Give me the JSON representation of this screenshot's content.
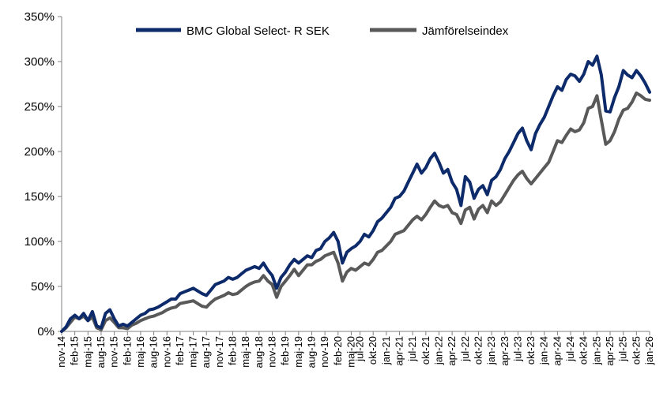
{
  "chart_data": {
    "type": "line",
    "title": "",
    "xlabel": "",
    "ylabel": "",
    "ylim": [
      0,
      350
    ],
    "y_ticks": [
      "0%",
      "50%",
      "100%",
      "150%",
      "200%",
      "250%",
      "300%",
      "350%"
    ],
    "x_ticks": [
      "nov-14",
      "feb-15",
      "maj-15",
      "aug-15",
      "nov-15",
      "feb-16",
      "maj-16",
      "aug-16",
      "nov-16",
      "feb-17",
      "maj-17",
      "aug-17",
      "nov-17",
      "feb-18",
      "maj-18",
      "aug-18",
      "nov-18",
      "feb-19",
      "maj-19",
      "aug-19",
      "nov-19",
      "feb-20",
      "maj-20",
      "jul-20",
      "okt-20",
      "jan-21",
      "apr-21",
      "jul-21",
      "okt-21",
      "jan-22",
      "apr-22",
      "jul-22",
      "okt-22",
      "jan-23",
      "apr-23",
      "jul-23",
      "okt-23",
      "jan-24",
      "apr-24",
      "jul-24",
      "okt-24",
      "jan-25",
      "apr-25",
      "jul-25",
      "okt-25",
      "jan-26"
    ],
    "grid": false,
    "legend_position": "top-center",
    "series": [
      {
        "name": "BMC Global Select- R SEK",
        "color": "#0d2a6b",
        "points": [
          [
            "nov-14",
            0
          ],
          [
            "dec-14",
            5
          ],
          [
            "jan-15",
            14
          ],
          [
            "feb-15",
            18
          ],
          [
            "mar-15",
            14
          ],
          [
            "apr-15",
            20
          ],
          [
            "maj-15",
            12
          ],
          [
            "jun-15",
            22
          ],
          [
            "jul-15",
            6
          ],
          [
            "aug-15",
            4
          ],
          [
            "sep-15",
            20
          ],
          [
            "okt-15",
            24
          ],
          [
            "nov-15",
            14
          ],
          [
            "dec-15",
            6
          ],
          [
            "jan-16",
            8
          ],
          [
            "feb-16",
            6
          ],
          [
            "mar-16",
            10
          ],
          [
            "apr-16",
            14
          ],
          [
            "maj-16",
            18
          ],
          [
            "jun-16",
            20
          ],
          [
            "jul-16",
            24
          ],
          [
            "aug-16",
            25
          ],
          [
            "sep-16",
            27
          ],
          [
            "okt-16",
            30
          ],
          [
            "nov-16",
            33
          ],
          [
            "dec-16",
            36
          ],
          [
            "jan-17",
            36
          ],
          [
            "feb-17",
            42
          ],
          [
            "mar-17",
            44
          ],
          [
            "apr-17",
            46
          ],
          [
            "maj-17",
            48
          ],
          [
            "jun-17",
            45
          ],
          [
            "jul-17",
            42
          ],
          [
            "aug-17",
            40
          ],
          [
            "sep-17",
            46
          ],
          [
            "okt-17",
            52
          ],
          [
            "nov-17",
            54
          ],
          [
            "dec-17",
            56
          ],
          [
            "jan-18",
            60
          ],
          [
            "feb-18",
            58
          ],
          [
            "mar-18",
            60
          ],
          [
            "apr-18",
            64
          ],
          [
            "maj-18",
            68
          ],
          [
            "jun-18",
            70
          ],
          [
            "jul-18",
            72
          ],
          [
            "aug-18",
            70
          ],
          [
            "sep-18",
            76
          ],
          [
            "okt-18",
            68
          ],
          [
            "nov-18",
            62
          ],
          [
            "dec-18",
            48
          ],
          [
            "jan-19",
            60
          ],
          [
            "feb-19",
            66
          ],
          [
            "mar-19",
            74
          ],
          [
            "apr-19",
            80
          ],
          [
            "maj-19",
            76
          ],
          [
            "jun-19",
            80
          ],
          [
            "jul-19",
            84
          ],
          [
            "aug-19",
            82
          ],
          [
            "sep-19",
            90
          ],
          [
            "okt-19",
            92
          ],
          [
            "nov-19",
            100
          ],
          [
            "dec-19",
            104
          ],
          [
            "jan-20",
            110
          ],
          [
            "feb-20",
            100
          ],
          [
            "mar-20",
            76
          ],
          [
            "apr-20",
            88
          ],
          [
            "maj-20",
            92
          ],
          [
            "jun-20",
            95
          ],
          [
            "jul-20",
            100
          ],
          [
            "aug-20",
            108
          ],
          [
            "sep-20",
            105
          ],
          [
            "okt-20",
            112
          ],
          [
            "nov-20",
            122
          ],
          [
            "dec-20",
            126
          ],
          [
            "jan-21",
            132
          ],
          [
            "feb-21",
            138
          ],
          [
            "mar-21",
            148
          ],
          [
            "apr-21",
            150
          ],
          [
            "maj-21",
            156
          ],
          [
            "jun-21",
            166
          ],
          [
            "jul-21",
            176
          ],
          [
            "aug-21",
            186
          ],
          [
            "sep-21",
            176
          ],
          [
            "okt-21",
            182
          ],
          [
            "nov-21",
            192
          ],
          [
            "dec-21",
            198
          ],
          [
            "jan-22",
            188
          ],
          [
            "feb-22",
            176
          ],
          [
            "mar-22",
            180
          ],
          [
            "apr-22",
            166
          ],
          [
            "maj-22",
            158
          ],
          [
            "jun-22",
            140
          ],
          [
            "jul-22",
            172
          ],
          [
            "aug-22",
            166
          ],
          [
            "sep-22",
            148
          ],
          [
            "okt-22",
            158
          ],
          [
            "nov-22",
            162
          ],
          [
            "dec-22",
            152
          ],
          [
            "jan-23",
            168
          ],
          [
            "feb-23",
            172
          ],
          [
            "mar-23",
            180
          ],
          [
            "apr-23",
            192
          ],
          [
            "maj-23",
            200
          ],
          [
            "jun-23",
            210
          ],
          [
            "jul-23",
            220
          ],
          [
            "aug-23",
            226
          ],
          [
            "sep-23",
            212
          ],
          [
            "okt-23",
            202
          ],
          [
            "nov-23",
            220
          ],
          [
            "dec-23",
            230
          ],
          [
            "jan-24",
            238
          ],
          [
            "feb-24",
            250
          ],
          [
            "mar-24",
            262
          ],
          [
            "apr-24",
            272
          ],
          [
            "maj-24",
            268
          ],
          [
            "jun-24",
            280
          ],
          [
            "jul-24",
            286
          ],
          [
            "aug-24",
            284
          ],
          [
            "sep-24",
            278
          ],
          [
            "okt-24",
            286
          ],
          [
            "nov-24",
            300
          ],
          [
            "dec-24",
            296
          ],
          [
            "jan-25",
            306
          ],
          [
            "feb-25",
            285
          ],
          [
            "mar-25",
            245
          ],
          [
            "apr-25",
            244
          ],
          [
            "maj-25",
            260
          ],
          [
            "jun-25",
            272
          ],
          [
            "jul-25",
            290
          ],
          [
            "aug-25",
            285
          ],
          [
            "sep-25",
            282
          ],
          [
            "okt-25",
            290
          ],
          [
            "nov-25",
            284
          ],
          [
            "dec-25",
            276
          ],
          [
            "jan-26",
            266
          ]
        ]
      },
      {
        "name": "Jämförelseindex",
        "color": "#595959",
        "points": [
          [
            "nov-14",
            0
          ],
          [
            "dec-14",
            4
          ],
          [
            "jan-15",
            10
          ],
          [
            "feb-15",
            16
          ],
          [
            "mar-15",
            14
          ],
          [
            "apr-15",
            17
          ],
          [
            "maj-15",
            12
          ],
          [
            "jun-15",
            16
          ],
          [
            "jul-15",
            4
          ],
          [
            "aug-15",
            2
          ],
          [
            "sep-15",
            12
          ],
          [
            "okt-15",
            15
          ],
          [
            "nov-15",
            10
          ],
          [
            "dec-15",
            4
          ],
          [
            "jan-16",
            4
          ],
          [
            "feb-16",
            3
          ],
          [
            "mar-16",
            7
          ],
          [
            "apr-16",
            9
          ],
          [
            "maj-16",
            12
          ],
          [
            "jun-16",
            14
          ],
          [
            "jul-16",
            16
          ],
          [
            "aug-16",
            17
          ],
          [
            "sep-16",
            19
          ],
          [
            "okt-16",
            21
          ],
          [
            "nov-16",
            24
          ],
          [
            "dec-16",
            26
          ],
          [
            "jan-17",
            27
          ],
          [
            "feb-17",
            31
          ],
          [
            "mar-17",
            32
          ],
          [
            "apr-17",
            33
          ],
          [
            "maj-17",
            34
          ],
          [
            "jun-17",
            31
          ],
          [
            "jul-17",
            28
          ],
          [
            "aug-17",
            27
          ],
          [
            "sep-17",
            32
          ],
          [
            "okt-17",
            36
          ],
          [
            "nov-17",
            38
          ],
          [
            "dec-17",
            40
          ],
          [
            "jan-18",
            43
          ],
          [
            "feb-18",
            41
          ],
          [
            "mar-18",
            42
          ],
          [
            "apr-18",
            46
          ],
          [
            "maj-18",
            50
          ],
          [
            "jun-18",
            53
          ],
          [
            "jul-18",
            55
          ],
          [
            "aug-18",
            56
          ],
          [
            "sep-18",
            62
          ],
          [
            "okt-18",
            56
          ],
          [
            "nov-18",
            52
          ],
          [
            "dec-18",
            38
          ],
          [
            "jan-19",
            50
          ],
          [
            "feb-19",
            56
          ],
          [
            "mar-19",
            62
          ],
          [
            "apr-19",
            69
          ],
          [
            "maj-19",
            62
          ],
          [
            "jun-19",
            68
          ],
          [
            "jul-19",
            74
          ],
          [
            "aug-19",
            74
          ],
          [
            "sep-19",
            78
          ],
          [
            "okt-19",
            80
          ],
          [
            "nov-19",
            84
          ],
          [
            "dec-19",
            86
          ],
          [
            "jan-20",
            88
          ],
          [
            "feb-20",
            76
          ],
          [
            "mar-20",
            56
          ],
          [
            "apr-20",
            66
          ],
          [
            "maj-20",
            70
          ],
          [
            "jun-20",
            68
          ],
          [
            "jul-20",
            72
          ],
          [
            "aug-20",
            76
          ],
          [
            "sep-20",
            74
          ],
          [
            "okt-20",
            80
          ],
          [
            "nov-20",
            88
          ],
          [
            "dec-20",
            90
          ],
          [
            "jan-21",
            95
          ],
          [
            "feb-21",
            100
          ],
          [
            "mar-21",
            108
          ],
          [
            "apr-21",
            110
          ],
          [
            "maj-21",
            112
          ],
          [
            "jun-21",
            118
          ],
          [
            "jul-21",
            124
          ],
          [
            "aug-21",
            128
          ],
          [
            "sep-21",
            124
          ],
          [
            "okt-21",
            130
          ],
          [
            "nov-21",
            138
          ],
          [
            "dec-21",
            145
          ],
          [
            "jan-22",
            140
          ],
          [
            "feb-22",
            138
          ],
          [
            "mar-22",
            140
          ],
          [
            "apr-22",
            132
          ],
          [
            "maj-22",
            130
          ],
          [
            "jun-22",
            120
          ],
          [
            "jul-22",
            135
          ],
          [
            "aug-22",
            138
          ],
          [
            "sep-22",
            125
          ],
          [
            "okt-22",
            136
          ],
          [
            "nov-22",
            140
          ],
          [
            "dec-22",
            132
          ],
          [
            "jan-23",
            145
          ],
          [
            "feb-23",
            140
          ],
          [
            "mar-23",
            144
          ],
          [
            "apr-23",
            152
          ],
          [
            "maj-23",
            160
          ],
          [
            "jun-23",
            168
          ],
          [
            "jul-23",
            174
          ],
          [
            "aug-23",
            178
          ],
          [
            "sep-23",
            170
          ],
          [
            "okt-23",
            164
          ],
          [
            "nov-23",
            170
          ],
          [
            "dec-23",
            176
          ],
          [
            "jan-24",
            182
          ],
          [
            "feb-24",
            188
          ],
          [
            "mar-24",
            200
          ],
          [
            "apr-24",
            212
          ],
          [
            "maj-24",
            210
          ],
          [
            "jun-24",
            218
          ],
          [
            "jul-24",
            225
          ],
          [
            "aug-24",
            222
          ],
          [
            "sep-24",
            224
          ],
          [
            "okt-24",
            232
          ],
          [
            "nov-24",
            248
          ],
          [
            "dec-24",
            250
          ],
          [
            "jan-25",
            262
          ],
          [
            "feb-25",
            235
          ],
          [
            "mar-25",
            208
          ],
          [
            "apr-25",
            212
          ],
          [
            "maj-25",
            222
          ],
          [
            "jun-25",
            236
          ],
          [
            "jul-25",
            246
          ],
          [
            "aug-25",
            248
          ],
          [
            "sep-25",
            255
          ],
          [
            "okt-25",
            265
          ],
          [
            "nov-25",
            262
          ],
          [
            "dec-25",
            258
          ],
          [
            "jan-26",
            257
          ]
        ]
      }
    ]
  }
}
